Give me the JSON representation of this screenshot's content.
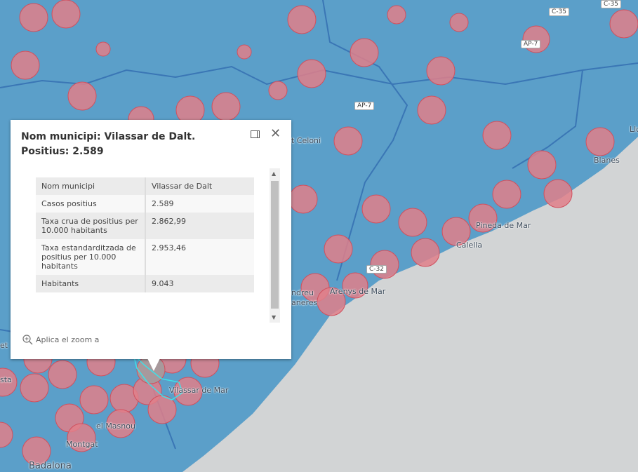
{
  "popup": {
    "title": "Nom municipi: Vilassar de Dalt. Positius: 2.589",
    "zoom_label": "Aplica el zoom a",
    "rows": [
      {
        "label": "Nom municipi",
        "value": "Vilassar de Dalt"
      },
      {
        "label": "Casos positius",
        "value": "2.589"
      },
      {
        "label": "Taxa crua de positius per 10.000 habitants",
        "value": "2.862,99"
      },
      {
        "label": "Taxa estandarditzada de positius per 10.000 habitants",
        "value": "2.953,46"
      },
      {
        "label": "Habitants",
        "value": "9.043"
      }
    ]
  },
  "map": {
    "places": [
      "Blanes",
      "Llo",
      "t Celoni",
      "Pineda de Mar",
      "Calella",
      "Arenys de Mar",
      "ndreu",
      "aneres",
      "Vilassar de Mar",
      "el Masnou",
      "Montgat",
      "Badalona",
      "sta",
      "et"
    ],
    "roads": [
      "C-35",
      "C-35",
      "AP-7",
      "AP-7",
      "C-32"
    ]
  },
  "colors": {
    "land": "#5b9fc9",
    "sea": "#d2d4d5",
    "circle": "#e07f8a",
    "selected": "#a8999c",
    "highlight": "#3fe0e8"
  }
}
